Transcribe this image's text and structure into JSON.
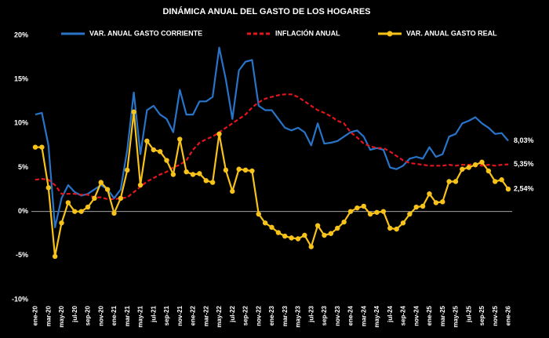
{
  "chart_data": {
    "type": "line",
    "title": "DINÁMICA ANUAL DEL GASTO DE LOS HOGARES",
    "categories": [
      "ene-20",
      null,
      "mar-20",
      null,
      "may-20",
      null,
      "jul-20",
      null,
      "sep-20",
      null,
      "nov-20",
      null,
      "ene-21",
      null,
      "mar-21",
      null,
      "may-21",
      null,
      "jul-21",
      null,
      "sep-21",
      null,
      "nov-21",
      null,
      "ene-22",
      null,
      "mar-22",
      null,
      "may-22",
      null,
      "jul-22",
      null,
      "sep-22",
      null,
      "nov-22",
      null,
      "ene-23",
      null,
      "mar-23",
      null,
      "may-23",
      null,
      "jul-23",
      null,
      "sep-23",
      null,
      "nov-23",
      null,
      "ene-24",
      null,
      "mar-24",
      null,
      "may-24",
      null,
      "jul-24",
      null,
      "sep-24",
      null,
      "nov-24",
      null,
      "ene-25",
      null,
      "mar-25",
      null,
      "may-25",
      null,
      "jul-25",
      null,
      "sep-25",
      null,
      "nov-25",
      null,
      "ene-26"
    ],
    "ylim": [
      -10,
      20
    ],
    "yticks": [
      {
        "value": -10,
        "label": "-10%"
      },
      {
        "value": -5,
        "label": "-5%"
      },
      {
        "value": 0,
        "label": "0%"
      },
      {
        "value": 5,
        "label": "5%"
      },
      {
        "value": 10,
        "label": "10%"
      },
      {
        "value": 15,
        "label": "15%"
      },
      {
        "value": 20,
        "label": "20%"
      }
    ],
    "grid": false,
    "legend": "top",
    "series": [
      {
        "name": "VAR. ANUAL GASTO CORRIENTE",
        "color": "#2774c9",
        "dashed": false,
        "markers": false,
        "values": [
          11.0,
          11.2,
          7.5,
          -1.8,
          1.5,
          3.0,
          2.2,
          1.8,
          2.0,
          2.5,
          3.0,
          2.5,
          1.5,
          2.5,
          7.0,
          13.5,
          6.5,
          11.5,
          12.0,
          11.0,
          10.5,
          9.0,
          13.8,
          11.0,
          11.0,
          12.5,
          12.5,
          13.0,
          18.6,
          15.0,
          10.5,
          16.0,
          17.0,
          17.2,
          12.0,
          11.5,
          11.5,
          10.5,
          9.5,
          9.2,
          9.5,
          9.0,
          7.5,
          10.0,
          7.7,
          7.8,
          8.0,
          8.5,
          9.0,
          9.2,
          8.5,
          7.0,
          7.2,
          7.0,
          5.0,
          4.8,
          5.2,
          6.0,
          6.2,
          6.0,
          7.3,
          6.2,
          6.5,
          8.5,
          8.8,
          10.0,
          10.3,
          10.7,
          10.0,
          9.5,
          8.8,
          8.9,
          8.03
        ],
        "value_labels": [
          null,
          null,
          null,
          null,
          null,
          null,
          null,
          null,
          null,
          null,
          null,
          null,
          null,
          null,
          null,
          null,
          null,
          null,
          null,
          null,
          null,
          null,
          null,
          null,
          null,
          null,
          null,
          null,
          null,
          null,
          null,
          null,
          null,
          null,
          null,
          null,
          null,
          null,
          null,
          null,
          null,
          null,
          null,
          null,
          null,
          null,
          null,
          null,
          null,
          null,
          null,
          null,
          null,
          null,
          null,
          null,
          null,
          null,
          null,
          null,
          null,
          null,
          null,
          null,
          null,
          null,
          null,
          null,
          null,
          null,
          null,
          null,
          "8,03%"
        ]
      },
      {
        "name": "INFLACIÓN ANUAL",
        "color": "#e3161c",
        "dashed": true,
        "markers": false,
        "values": [
          3.6,
          3.7,
          3.6,
          3.0,
          2.0,
          2.0,
          2.0,
          1.9,
          1.9,
          1.6,
          1.6,
          1.4,
          1.4,
          1.5,
          1.6,
          2.2,
          2.8,
          3.4,
          3.8,
          4.2,
          4.5,
          5.0,
          5.3,
          5.8,
          7.0,
          7.8,
          8.2,
          8.5,
          9.0,
          9.5,
          10.0,
          10.5,
          11.0,
          11.8,
          12.4,
          12.8,
          13.0,
          13.2,
          13.3,
          13.3,
          13.0,
          12.5,
          12.0,
          11.5,
          11.2,
          10.8,
          10.3,
          10.0,
          9.0,
          8.4,
          7.7,
          7.4,
          7.2,
          7.2,
          6.8,
          6.3,
          5.8,
          5.5,
          5.4,
          5.3,
          5.2,
          5.2,
          5.2,
          5.3,
          5.2,
          5.3,
          5.3,
          5.4,
          5.2,
          5.3,
          5.2,
          5.3,
          5.35
        ],
        "value_labels": [
          null,
          null,
          null,
          null,
          null,
          null,
          null,
          null,
          null,
          null,
          null,
          null,
          null,
          null,
          null,
          null,
          null,
          null,
          null,
          null,
          null,
          null,
          null,
          null,
          null,
          null,
          null,
          null,
          null,
          null,
          null,
          null,
          null,
          null,
          null,
          null,
          null,
          null,
          null,
          null,
          null,
          null,
          null,
          null,
          null,
          null,
          null,
          null,
          null,
          null,
          null,
          null,
          null,
          null,
          null,
          null,
          null,
          null,
          null,
          null,
          null,
          null,
          null,
          null,
          null,
          null,
          null,
          null,
          null,
          null,
          null,
          null,
          "5,35%"
        ]
      },
      {
        "name": "VAR. ANUAL GASTO REAL",
        "color": "#f7c21a",
        "dashed": false,
        "markers": true,
        "values": [
          7.3,
          7.3,
          2.7,
          -5.1,
          -1.3,
          1.0,
          0,
          0,
          0.5,
          1.5,
          3.3,
          2.5,
          -0.2,
          1.5,
          4.7,
          11.3,
          3.0,
          8.0,
          7.0,
          6.8,
          5.8,
          4.2,
          8.2,
          4.5,
          4.2,
          4.3,
          3.5,
          3.3,
          8.8,
          4.7,
          2.3,
          4.8,
          4.7,
          4.6,
          -0.3,
          -1.3,
          -1.8,
          -2.4,
          -2.8,
          -3.0,
          -3.1,
          -2.7,
          -4.0,
          -1.6,
          -2.7,
          -2.5,
          -1.9,
          -1.2,
          0,
          0.4,
          0.6,
          -0.3,
          -0.1,
          0,
          -1.9,
          -2.0,
          -1.3,
          -0.3,
          0.5,
          0.6,
          2.0,
          1.0,
          1.1,
          3.4,
          3.4,
          4.8,
          5.0,
          5.3,
          5.6,
          4.6,
          3.4,
          3.6,
          2.54
        ],
        "value_labels": [
          null,
          null,
          null,
          null,
          null,
          null,
          null,
          null,
          null,
          null,
          null,
          null,
          null,
          null,
          null,
          null,
          null,
          null,
          null,
          null,
          null,
          null,
          null,
          null,
          null,
          null,
          null,
          null,
          null,
          null,
          null,
          null,
          null,
          null,
          null,
          null,
          null,
          null,
          null,
          null,
          null,
          null,
          null,
          null,
          null,
          null,
          null,
          null,
          null,
          null,
          null,
          null,
          null,
          null,
          null,
          null,
          null,
          null,
          null,
          null,
          null,
          null,
          null,
          null,
          null,
          null,
          null,
          null,
          null,
          null,
          null,
          null,
          "2,54%"
        ]
      }
    ]
  }
}
